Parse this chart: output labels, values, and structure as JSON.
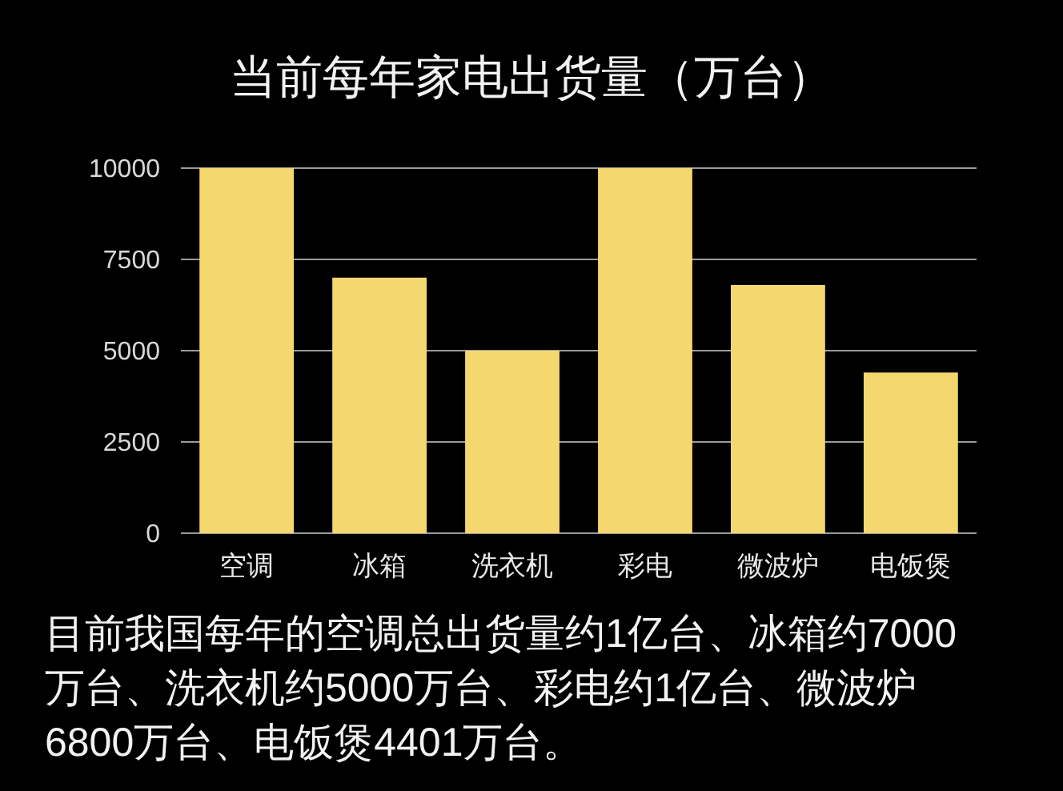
{
  "chart_data": {
    "type": "bar",
    "title": "当前每年家电出货量（万台）",
    "categories": [
      "空调",
      "冰箱",
      "洗衣机",
      "彩电",
      "微波炉",
      "电饭煲"
    ],
    "values": [
      10000,
      7000,
      5000,
      10000,
      6800,
      4401
    ],
    "color": "#f4d76f",
    "ylim": [
      0,
      10000
    ],
    "yticks": [
      0,
      2500,
      5000,
      7500,
      10000
    ],
    "grid": "y",
    "annotations": [
      "目前我国每年的空调总出货量约1亿台、冰箱约7000万台、洗衣机约5000万台、彩电约1亿台、微波炉6800万台、电饭煲4401万台。"
    ]
  }
}
